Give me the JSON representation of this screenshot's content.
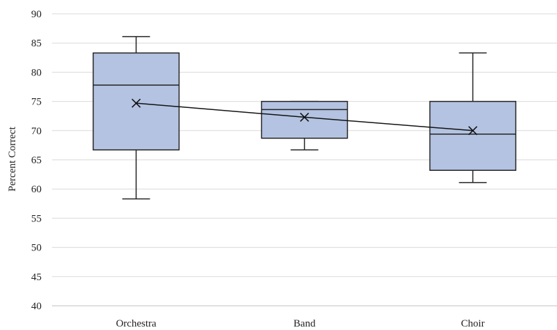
{
  "chart_data": {
    "type": "box",
    "title": "",
    "xlabel": "",
    "ylabel": "Percent Correct",
    "ylim": [
      40,
      90
    ],
    "yticks": [
      40,
      45,
      50,
      55,
      60,
      65,
      70,
      75,
      80,
      85,
      90
    ],
    "grid": true,
    "categories": [
      "Orchestra",
      "Band",
      "Choir"
    ],
    "boxes": [
      {
        "category": "Orchestra",
        "min": 58.3,
        "q1": 66.7,
        "median": 77.8,
        "q3": 83.3,
        "max": 86.1,
        "mean": 74.7
      },
      {
        "category": "Band",
        "min": 66.7,
        "q1": 68.7,
        "median": 73.6,
        "q3": 75.0,
        "max": 75.0,
        "mean": 72.3
      },
      {
        "category": "Choir",
        "min": 61.1,
        "q1": 63.2,
        "median": 69.4,
        "q3": 75.0,
        "max": 83.3,
        "mean": 70.0
      }
    ],
    "mean_line": true,
    "colors": {
      "box_fill": "#b4c3e1",
      "box_stroke": "#222222",
      "grid": "#d9d9d9",
      "axis": "#bfbfbf",
      "line": "#111111"
    }
  }
}
